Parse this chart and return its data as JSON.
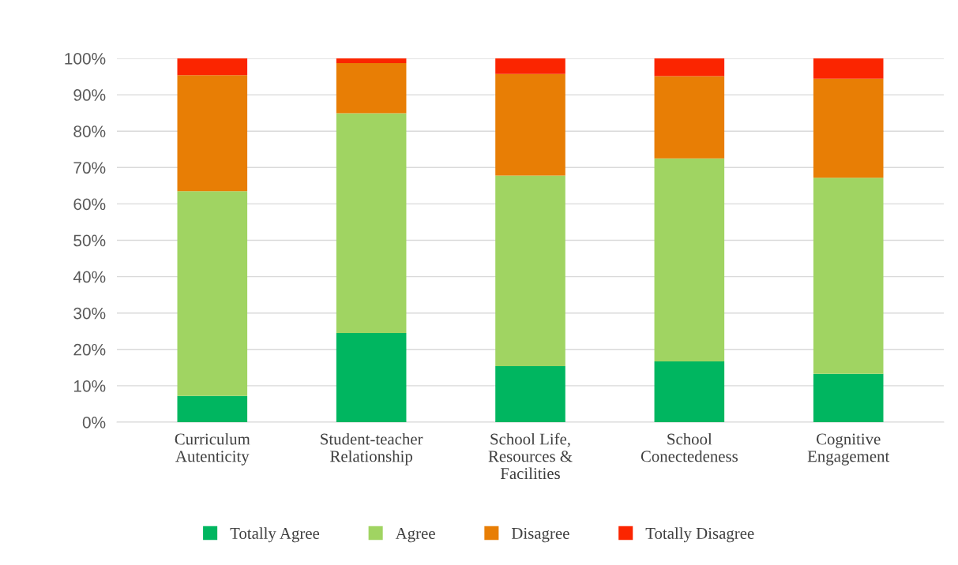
{
  "chart_data": {
    "type": "bar",
    "stacked": true,
    "categories": [
      "Curriculum\nAutenticity",
      "Student-teacher\nRelationship",
      "School Life,\nResources &\nFacilities",
      "School\nConectedeness",
      "Cognitive\nEngagement"
    ],
    "series": [
      {
        "name": "Totally Agree",
        "color": "#00b660",
        "values": [
          7.2,
          24.5,
          15.4,
          16.7,
          13.3
        ]
      },
      {
        "name": "Agree",
        "color": "#a0d462",
        "values": [
          56.3,
          60.4,
          52.4,
          55.8,
          53.9
        ]
      },
      {
        "name": "Disagree",
        "color": "#e87e05",
        "values": [
          31.9,
          13.8,
          27.9,
          22.6,
          27.2
        ]
      },
      {
        "name": "Totally Disagree",
        "color": "#fb2500",
        "values": [
          4.6,
          1.3,
          4.3,
          4.9,
          5.6
        ]
      }
    ],
    "ylim": [
      0,
      100
    ],
    "yticks": [
      {
        "value": 0,
        "label": "0%"
      },
      {
        "value": 10,
        "label": "10%"
      },
      {
        "value": 20,
        "label": "20%"
      },
      {
        "value": 30,
        "label": "30%"
      },
      {
        "value": 40,
        "label": "40%"
      },
      {
        "value": 50,
        "label": "50%"
      },
      {
        "value": 60,
        "label": "60%"
      },
      {
        "value": 70,
        "label": "70%"
      },
      {
        "value": 80,
        "label": "80%"
      },
      {
        "value": 90,
        "label": "90%"
      },
      {
        "value": 100,
        "label": "100%"
      }
    ],
    "grid": "y",
    "legend": "bottom"
  }
}
